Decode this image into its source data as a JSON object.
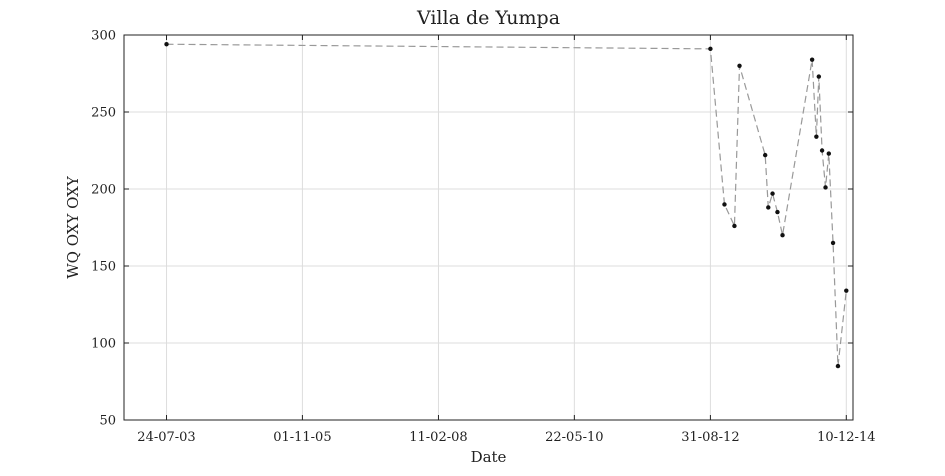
{
  "chart_data": {
    "type": "line",
    "title": "Villa de Yumpa",
    "xlabel": "Date",
    "ylabel": "WQ OXY OXY",
    "x_is_date": true,
    "xlim": [
      "2002-11-06",
      "2015-01-20"
    ],
    "ylim": [
      50,
      300
    ],
    "x_ticks": [
      {
        "date": "2003-07-24",
        "label": "24-07-03"
      },
      {
        "date": "2005-11-01",
        "label": "01-11-05"
      },
      {
        "date": "2008-02-11",
        "label": "11-02-08"
      },
      {
        "date": "2010-05-22",
        "label": "22-05-10"
      },
      {
        "date": "2012-08-31",
        "label": "31-08-12"
      },
      {
        "date": "2014-12-10",
        "label": "10-12-14"
      }
    ],
    "y_ticks": [
      50,
      100,
      150,
      200,
      250,
      300
    ],
    "grid": true,
    "legend": "none",
    "line_style": "dashed",
    "line_color": "#999999",
    "marker_color": "#111111",
    "series": [
      {
        "x": [
          "2003-07-24",
          "2012-08-31",
          "2012-11-25",
          "2013-01-25",
          "2013-02-25",
          "2013-08-01",
          "2013-08-20",
          "2013-09-15",
          "2013-10-15",
          "2013-11-15",
          "2014-05-15",
          "2014-06-10",
          "2014-06-25",
          "2014-07-15",
          "2014-08-05",
          "2014-08-25",
          "2014-09-20",
          "2014-10-20",
          "2014-12-10"
        ],
        "y": [
          294,
          291,
          190,
          176,
          280,
          222,
          188,
          197,
          185,
          170,
          284,
          234,
          273,
          225,
          201,
          223,
          165,
          85,
          134
        ]
      }
    ]
  }
}
